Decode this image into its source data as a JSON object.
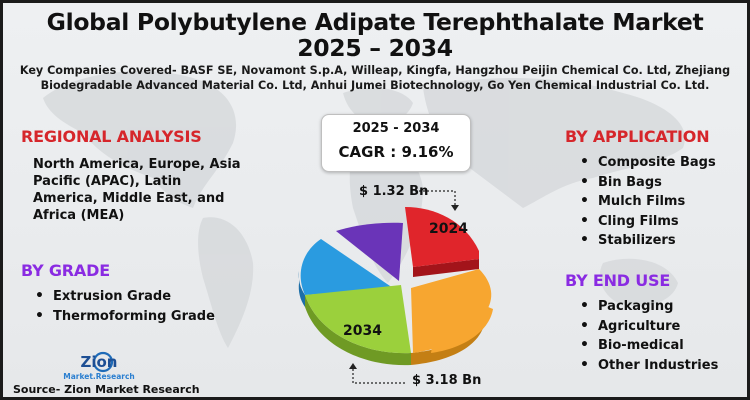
{
  "header": {
    "title_line1": "Global Polybutylene Adipate Terephthalate Market",
    "title_line2": "2025 – 2034",
    "companies_line1": "Key Companies Covered- BASF SE, Novamont S.p.A, Willeap, Kingfa, Hangzhou Peijin Chemical Co. Ltd, Zhejiang",
    "companies_line2": "Biodegradable Advanced Material Co. Ltd, Anhui Jumei Biotechnology, Go Yen Chemical Industrial Co. Ltd."
  },
  "regional": {
    "heading": "REGIONAL ANALYSIS",
    "text": "North America, Europe, Asia Pacific (APAC), Latin America, Middle East, and Africa (MEA)"
  },
  "grade": {
    "heading": "BY GRADE",
    "items": [
      "Extrusion Grade",
      "Thermoforming Grade"
    ]
  },
  "application": {
    "heading": "BY APPLICATION",
    "items": [
      "Composite Bags",
      "Bin Bags",
      "Mulch Films",
      "Cling Films",
      "Stabilizers"
    ]
  },
  "end_use": {
    "heading": "BY END USE",
    "items": [
      "Packaging",
      "Agriculture",
      "Bio-medical",
      "Other Industries"
    ]
  },
  "forecast": {
    "period": "2025 - 2034",
    "cagr": "CAGR : 9.16%",
    "value_2024": "$ 1.32 Bn",
    "value_2034": "$ 3.18 Bn",
    "label_2024": "2024",
    "label_2034": "2034"
  },
  "pie_colors": {
    "red": "#e0252b",
    "orange": "#f7a630",
    "green": "#9bd03c",
    "blue": "#2a9be0",
    "purple": "#6a34b8"
  },
  "logo": {
    "name": "Zion",
    "tagline": "Market.Research"
  },
  "footer": {
    "source": "Source- Zion Market Research"
  },
  "accent_colors": {
    "heading_red": "#d6262b",
    "heading_purple": "#8a2be2"
  }
}
